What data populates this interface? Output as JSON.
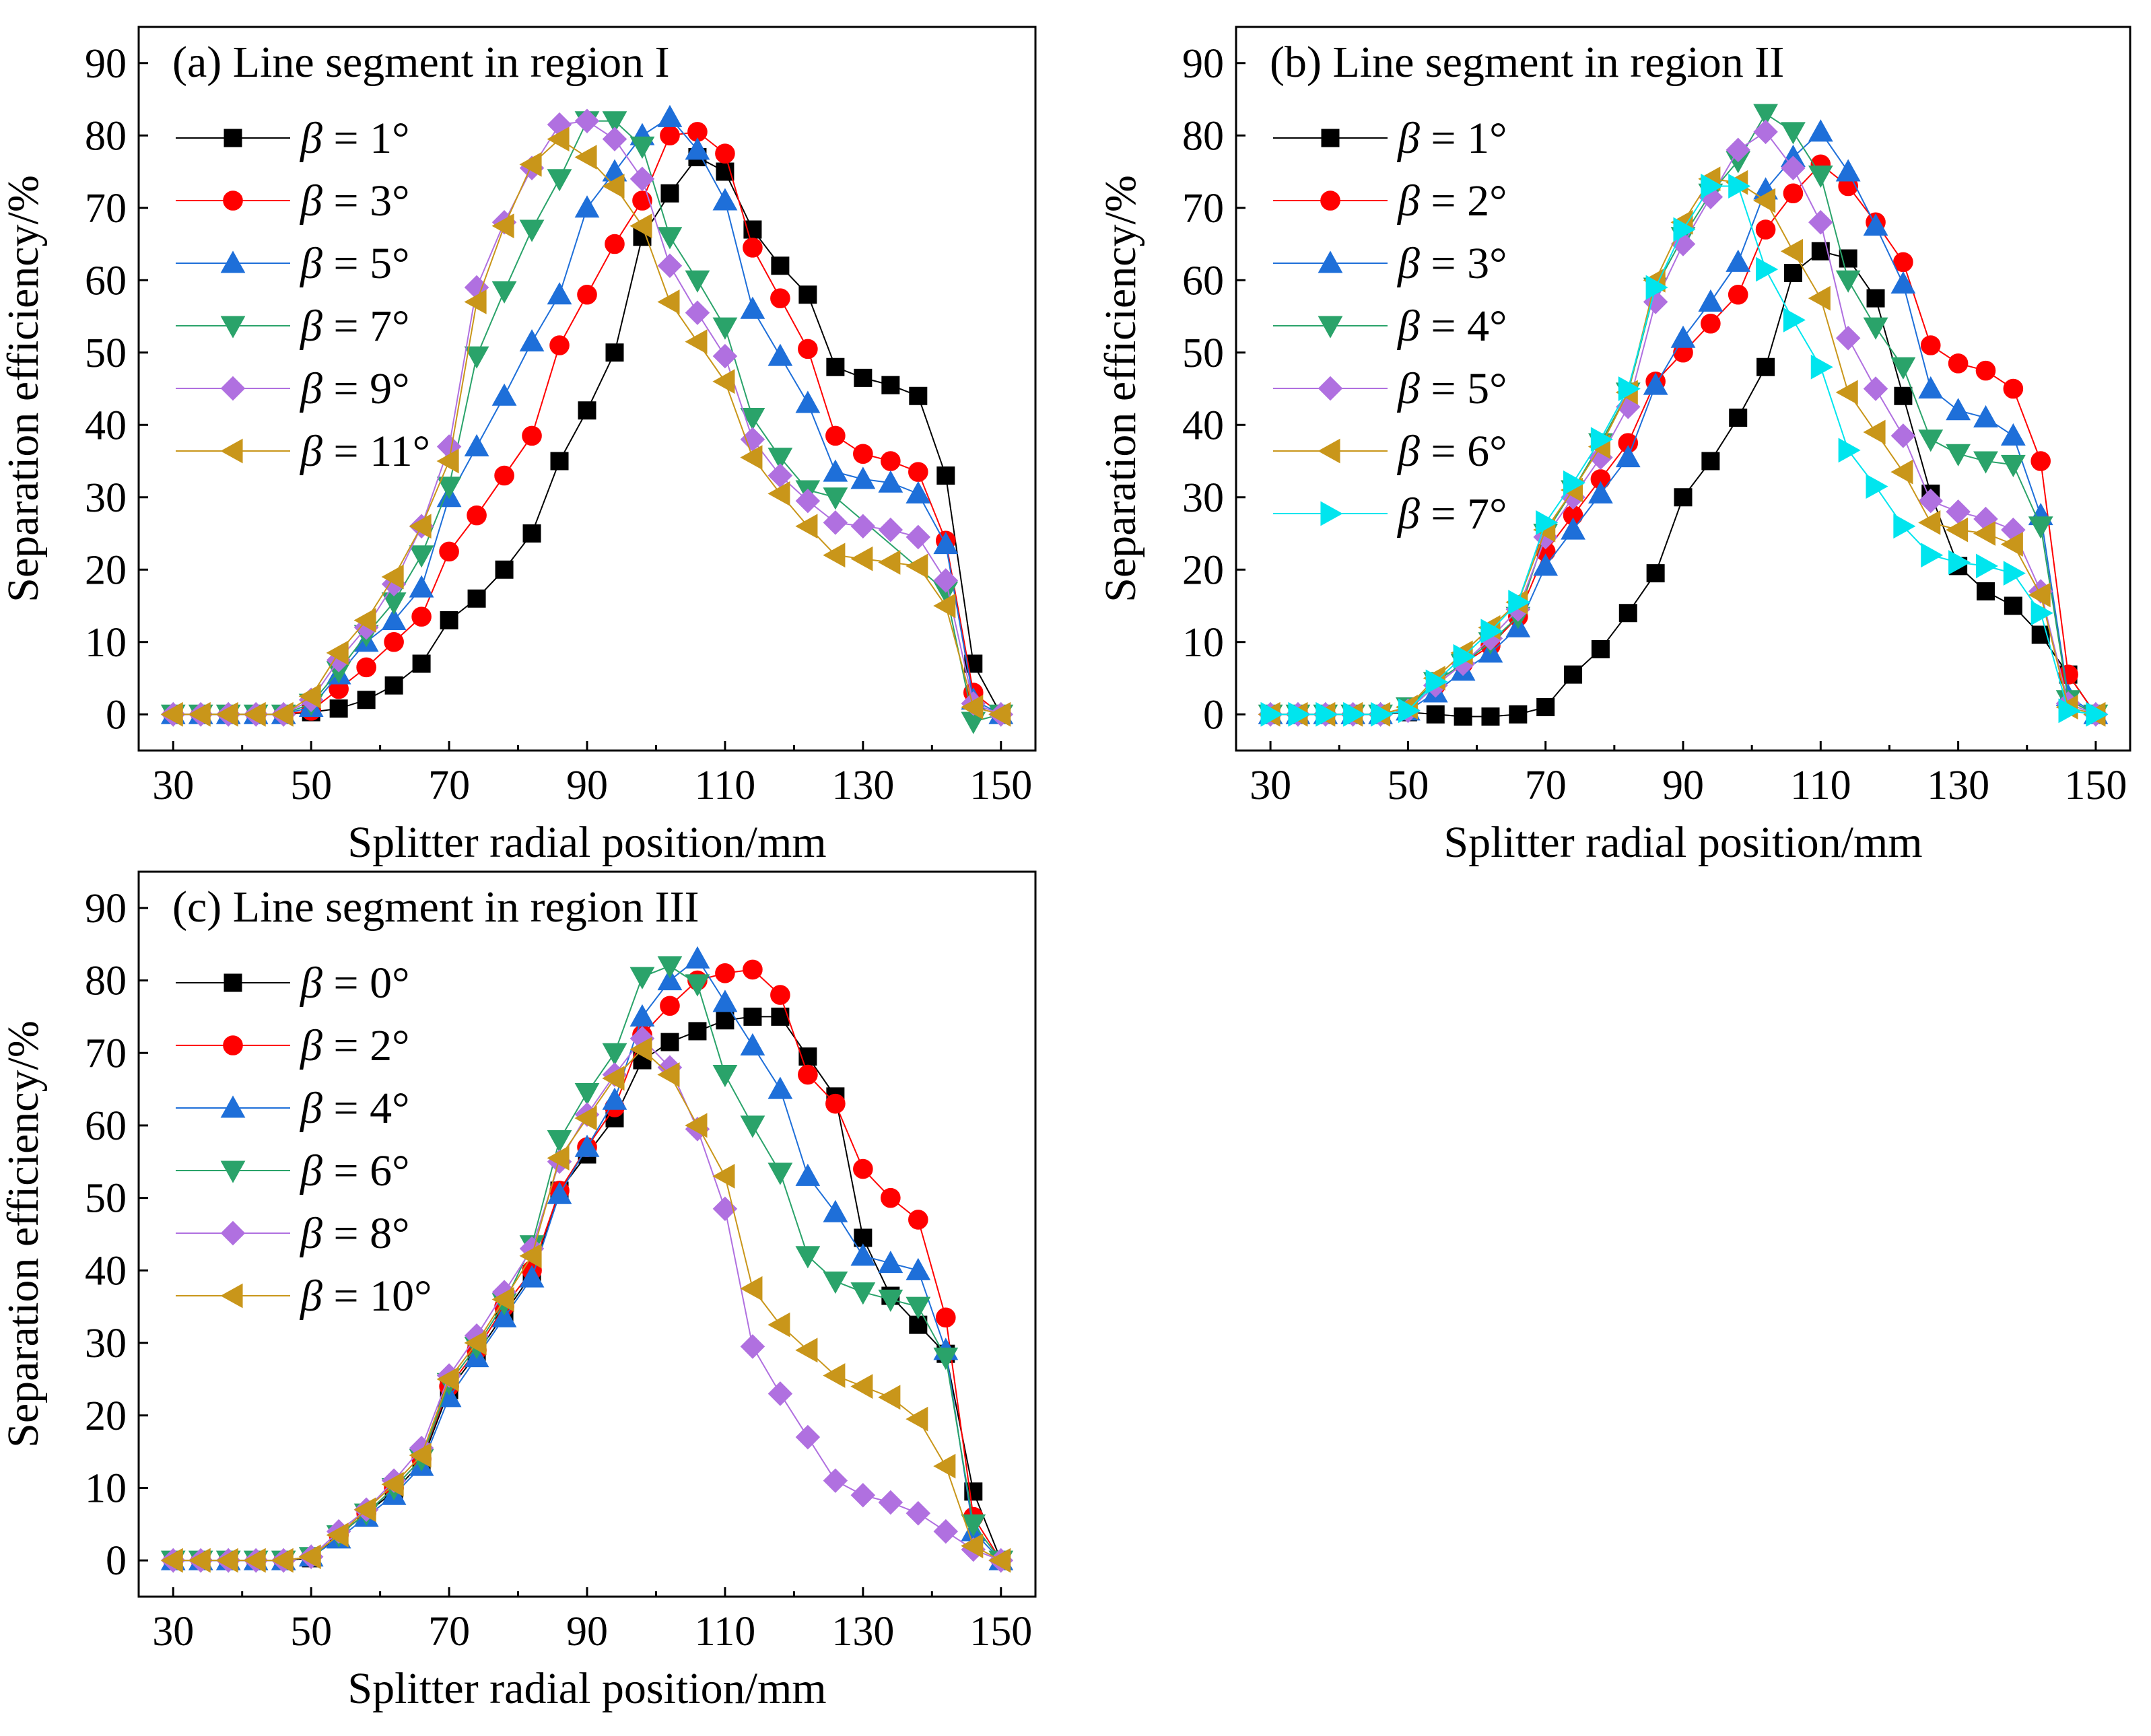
{
  "figure": {
    "layout": "2x2 grid, bottom-right empty"
  },
  "chart_data": [
    {
      "id": "a",
      "type": "line",
      "title": "(a) Line segment in region I",
      "xlabel": "Splitter radial position/mm",
      "ylabel": "Separation efficiency/%",
      "xlim": [
        25,
        155
      ],
      "ylim": [
        -5,
        95
      ],
      "xticks": [
        30,
        50,
        70,
        90,
        110,
        130,
        150
      ],
      "yticks": [
        0,
        10,
        20,
        30,
        40,
        50,
        60,
        70,
        80,
        90
      ],
      "x": [
        30,
        34,
        38,
        42,
        46,
        50,
        54,
        58,
        62,
        66,
        70,
        74,
        78,
        82,
        86,
        90,
        94,
        98,
        102,
        106,
        110,
        114,
        118,
        122,
        126,
        130,
        134,
        138,
        142,
        146,
        150
      ],
      "legend": {
        "position": "top-left",
        "prefix": "β",
        "eq": " = "
      },
      "series": [
        {
          "name": "β = 1°",
          "angle": "1°",
          "marker": "square",
          "color": "#000000",
          "values": [
            0,
            0,
            0,
            0,
            0,
            0.3,
            0.8,
            2,
            4,
            7,
            13,
            16,
            20,
            25,
            35,
            42,
            50,
            66,
            72,
            77,
            75,
            67,
            62,
            58,
            48,
            46.5,
            45.5,
            44,
            33,
            7,
            0
          ]
        },
        {
          "name": "β = 3°",
          "angle": "3°",
          "marker": "circle",
          "color": "#ff0000",
          "values": [
            0,
            0,
            0,
            0,
            0,
            0.5,
            3.5,
            6.5,
            10,
            13.5,
            22.5,
            27.5,
            33,
            38.5,
            51,
            58,
            65,
            71,
            80,
            80.5,
            77.5,
            64.5,
            57.5,
            50.5,
            38.5,
            36,
            35,
            33.5,
            24,
            3,
            0
          ]
        },
        {
          "name": "β = 5°",
          "angle": "5°",
          "marker": "triangle-up",
          "color": "#1e6fd9",
          "values": [
            0,
            0,
            0,
            0,
            0,
            1,
            5.5,
            10,
            13,
            17.5,
            30,
            37,
            44,
            51.5,
            58,
            70,
            75,
            80,
            82.5,
            78,
            71,
            56,
            49.5,
            43,
            33.5,
            32.5,
            32,
            30.5,
            23.5,
            2,
            0
          ]
        },
        {
          "name": "β = 7°",
          "angle": "7°",
          "marker": "triangle-down",
          "color": "#2aa36a",
          "values": [
            0,
            0,
            0,
            0,
            0,
            1.5,
            6,
            11,
            15.5,
            22,
            31.5,
            49.5,
            58.5,
            67,
            74,
            82,
            82,
            78.5,
            66,
            60,
            53.5,
            41,
            35.5,
            31,
            30,
            null,
            null,
            null,
            17,
            -1,
            0
          ]
        },
        {
          "name": "β = 9°",
          "angle": "9°",
          "marker": "diamond",
          "color": "#b070e0",
          "values": [
            0,
            0,
            0,
            0,
            0,
            2,
            7.5,
            12,
            18,
            26,
            37,
            59,
            68,
            75.5,
            81.5,
            82,
            79.5,
            74,
            62,
            55.5,
            49.5,
            38,
            33,
            29.5,
            26.5,
            26,
            25.5,
            24.5,
            18.5,
            1.5,
            0
          ]
        },
        {
          "name": "β = 11°",
          "angle": "11°",
          "marker": "triangle-left",
          "color": "#c9961a",
          "values": [
            0,
            0,
            0,
            0,
            0,
            2.5,
            8.5,
            13,
            19,
            26,
            35,
            57,
            67.5,
            76,
            79.5,
            77,
            73,
            67.5,
            57,
            51.5,
            46,
            35.5,
            30.5,
            26,
            22,
            21.5,
            21,
            20.5,
            15,
            1,
            0
          ]
        }
      ]
    },
    {
      "id": "b",
      "type": "line",
      "title": "(b) Line segment in region II",
      "xlabel": "Splitter radial position/mm",
      "ylabel": "Separation efficiency/%",
      "xlim": [
        25,
        155
      ],
      "ylim": [
        -5,
        95
      ],
      "xticks": [
        30,
        50,
        70,
        90,
        110,
        130,
        150
      ],
      "yticks": [
        0,
        10,
        20,
        30,
        40,
        50,
        60,
        70,
        80,
        90
      ],
      "x": [
        30,
        34,
        38,
        42,
        46,
        50,
        54,
        58,
        62,
        66,
        70,
        74,
        78,
        82,
        86,
        90,
        94,
        98,
        102,
        106,
        110,
        114,
        118,
        122,
        126,
        130,
        134,
        138,
        142,
        146,
        150
      ],
      "legend": {
        "position": "top-left",
        "prefix": "β",
        "eq": " = "
      },
      "series": [
        {
          "name": "β = 1°",
          "angle": "1°",
          "marker": "square",
          "color": "#000000",
          "values": [
            0,
            0,
            0,
            0,
            0,
            0.3,
            0,
            -0.3,
            -0.3,
            0,
            1,
            5.5,
            9,
            14,
            19.5,
            30,
            35,
            41,
            48,
            61,
            64,
            63,
            57.5,
            44,
            30.5,
            20.5,
            17,
            15,
            11,
            5.5,
            0
          ]
        },
        {
          "name": "β = 2°",
          "angle": "2°",
          "marker": "circle",
          "color": "#ff0000",
          "values": [
            0,
            0,
            0,
            0,
            0,
            0.5,
            4,
            7,
            9.5,
            13.5,
            22.5,
            27.5,
            32.5,
            37.5,
            46,
            50,
            54,
            58,
            67,
            72,
            76,
            73,
            68,
            62.5,
            51,
            48.5,
            47.5,
            45,
            35,
            5.5,
            0
          ]
        },
        {
          "name": "β = 3°",
          "angle": "3°",
          "marker": "triangle-up",
          "color": "#1e6fd9",
          "values": [
            0,
            0,
            0,
            0,
            0,
            0.5,
            3,
            6,
            8.5,
            12,
            20.5,
            25.5,
            30.5,
            35.5,
            45.5,
            52,
            57,
            62.5,
            72.5,
            77,
            80.5,
            75,
            67.5,
            59.5,
            45,
            42,
            41,
            38.5,
            27.5,
            2.5,
            0
          ]
        },
        {
          "name": "β = 4°",
          "angle": "4°",
          "marker": "triangle-down",
          "color": "#2aa36a",
          "values": [
            0,
            0,
            0,
            0,
            0,
            1,
            4.5,
            7,
            10,
            13.5,
            25,
            31,
            37.5,
            44.5,
            59,
            66,
            72,
            76.5,
            83,
            80.5,
            74.5,
            60,
            53.5,
            48,
            38,
            36,
            35,
            34.5,
            26,
            2,
            0
          ]
        },
        {
          "name": "β = 5°",
          "angle": "5°",
          "marker": "diamond",
          "color": "#b070e0",
          "values": [
            0,
            0,
            0,
            0,
            0,
            0.5,
            4,
            7,
            10.5,
            14.5,
            24.5,
            30,
            35.5,
            42.5,
            57,
            65,
            71.5,
            78,
            80.5,
            75.5,
            68,
            52,
            45,
            38.5,
            29.5,
            28,
            27,
            25.5,
            17,
            1.5,
            0
          ]
        },
        {
          "name": "β = 6°",
          "angle": "6°",
          "marker": "triangle-left",
          "color": "#c9961a",
          "values": [
            0,
            0,
            0,
            0,
            0,
            1,
            5,
            8.5,
            12,
            15.5,
            25.5,
            31,
            37,
            44.5,
            60,
            68,
            74,
            73.5,
            71,
            64,
            57.5,
            44.5,
            39,
            33.5,
            26.5,
            25.5,
            25,
            23.5,
            16.5,
            1,
            0
          ]
        },
        {
          "name": "β = 7°",
          "angle": "7°",
          "marker": "triangle-right",
          "color": "#00e5ee",
          "values": [
            0,
            0,
            0,
            0,
            0,
            0.5,
            4.5,
            8,
            11.5,
            15.5,
            26.5,
            32,
            38,
            45,
            59,
            67,
            73,
            73,
            61.5,
            54.5,
            48,
            36.5,
            31.5,
            26,
            22,
            21,
            20.5,
            19.5,
            14,
            0.5,
            0
          ]
        }
      ]
    },
    {
      "id": "c",
      "type": "line",
      "title": "(c) Line segment in region III",
      "xlabel": "Splitter radial position/mm",
      "ylabel": "Separation efficiency/%",
      "xlim": [
        25,
        155
      ],
      "ylim": [
        -5,
        95
      ],
      "xticks": [
        30,
        50,
        70,
        90,
        110,
        130,
        150
      ],
      "yticks": [
        0,
        10,
        20,
        30,
        40,
        50,
        60,
        70,
        80,
        90
      ],
      "x": [
        30,
        34,
        38,
        42,
        46,
        50,
        54,
        58,
        62,
        66,
        70,
        74,
        78,
        82,
        86,
        90,
        94,
        98,
        102,
        106,
        110,
        114,
        118,
        122,
        126,
        130,
        134,
        138,
        142,
        146,
        150
      ],
      "legend": {
        "position": "top-left",
        "prefix": "β",
        "eq": " = "
      },
      "series": [
        {
          "name": "β = 0°",
          "angle": "0°",
          "marker": "square",
          "color": "#000000",
          "values": [
            0,
            0,
            0,
            0,
            0,
            0.3,
            3.5,
            6.5,
            9.5,
            13.5,
            23.5,
            28.5,
            34,
            39.5,
            51,
            56,
            61,
            69,
            71.5,
            73,
            74.5,
            75,
            75,
            69.5,
            64,
            44.5,
            36.5,
            32.5,
            28.5,
            9.5,
            0
          ]
        },
        {
          "name": "β = 2°",
          "angle": "2°",
          "marker": "circle",
          "color": "#ff0000",
          "values": [
            0,
            0,
            0,
            0,
            0,
            0.5,
            3.5,
            6.5,
            10,
            14,
            24,
            29,
            35,
            40,
            51,
            57,
            62.5,
            72.5,
            76.5,
            80,
            81,
            81.5,
            78,
            67,
            63,
            54,
            50,
            47,
            33.5,
            6,
            0
          ]
        },
        {
          "name": "β = 4°",
          "angle": "4°",
          "marker": "triangle-up",
          "color": "#1e6fd9",
          "values": [
            0,
            0,
            0,
            0,
            0,
            0.5,
            3,
            6,
            9,
            13,
            22.5,
            28,
            33.5,
            39,
            50.5,
            57,
            63.5,
            75,
            80,
            83,
            77,
            71,
            65,
            53,
            48,
            42,
            41,
            40,
            29,
            4,
            0
          ]
        },
        {
          "name": "β = 6°",
          "angle": "6°",
          "marker": "triangle-down",
          "color": "#2aa36a",
          "values": [
            0,
            0,
            0,
            0,
            0,
            0.5,
            3.5,
            6.5,
            10,
            14,
            24.5,
            29.5,
            35.5,
            43.5,
            58,
            64.5,
            70,
            80.5,
            82,
            79.5,
            67,
            60,
            53.5,
            42,
            38.5,
            37,
            36,
            35,
            28,
            5,
            0
          ]
        },
        {
          "name": "β = 8°",
          "angle": "8°",
          "marker": "diamond",
          "color": "#b070e0",
          "values": [
            0,
            0,
            0,
            0,
            0,
            0.5,
            4,
            7,
            11,
            15.5,
            25.5,
            31,
            37,
            43,
            55,
            61.5,
            67,
            72,
            68,
            59.5,
            48.5,
            29.5,
            23,
            17,
            11,
            9,
            8,
            6.5,
            4,
            1.5,
            0
          ]
        },
        {
          "name": "β = 10°",
          "angle": "10°",
          "marker": "triangle-left",
          "color": "#c9961a",
          "values": [
            0,
            0,
            0,
            0,
            0,
            0.5,
            3.5,
            7,
            10.5,
            14.5,
            25,
            30,
            36,
            42,
            55.5,
            61,
            66.5,
            70.5,
            67,
            60,
            53,
            37.5,
            32.5,
            29,
            25.5,
            24,
            22.5,
            19.5,
            13,
            2,
            0
          ]
        }
      ]
    }
  ]
}
